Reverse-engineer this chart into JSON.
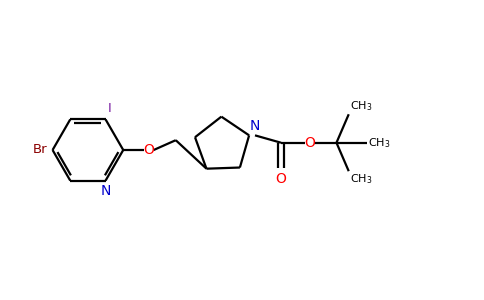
{
  "bg_color": "#ffffff",
  "bond_color": "#000000",
  "N_color": "#0000cc",
  "O_color": "#ff0000",
  "I_color": "#7b1fa2",
  "Br_color": "#8B0000",
  "line_width": 1.6,
  "figsize": [
    4.84,
    3.0
  ],
  "dpi": 100,
  "xlim": [
    0,
    9.68
  ],
  "ylim": [
    0,
    6.0
  ]
}
